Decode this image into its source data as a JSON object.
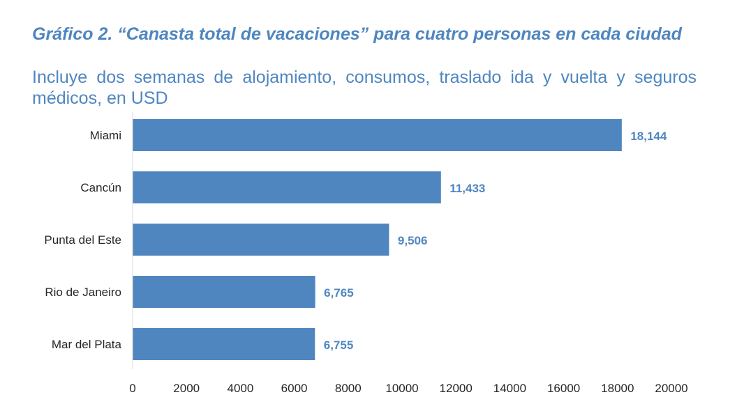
{
  "chart_data": {
    "type": "bar",
    "orientation": "horizontal",
    "title": "Gráfico 2. “Canasta total de vacaciones” para cuatro personas en cada ciudad",
    "subtitle": "Incluye dos semanas de alojamiento, consumos, traslado ida y vuelta y seguros médicos, en USD",
    "categories": [
      "Miami",
      "Cancún",
      "Punta del Este",
      "Rio de Janeiro",
      "Mar del Plata"
    ],
    "values": [
      18144,
      11433,
      9506,
      6765,
      6755
    ],
    "value_labels": [
      "18,144",
      "11,433",
      "9,506",
      "6,765",
      "6,755"
    ],
    "xticks": [
      0,
      2000,
      4000,
      6000,
      8000,
      10000,
      12000,
      14000,
      16000,
      18000,
      20000
    ],
    "xlim": [
      0,
      20000
    ],
    "grid": false,
    "legend": "none",
    "bar_color": "#4f86c0",
    "label_color": "#4f86c0",
    "text_color": "#262626"
  }
}
